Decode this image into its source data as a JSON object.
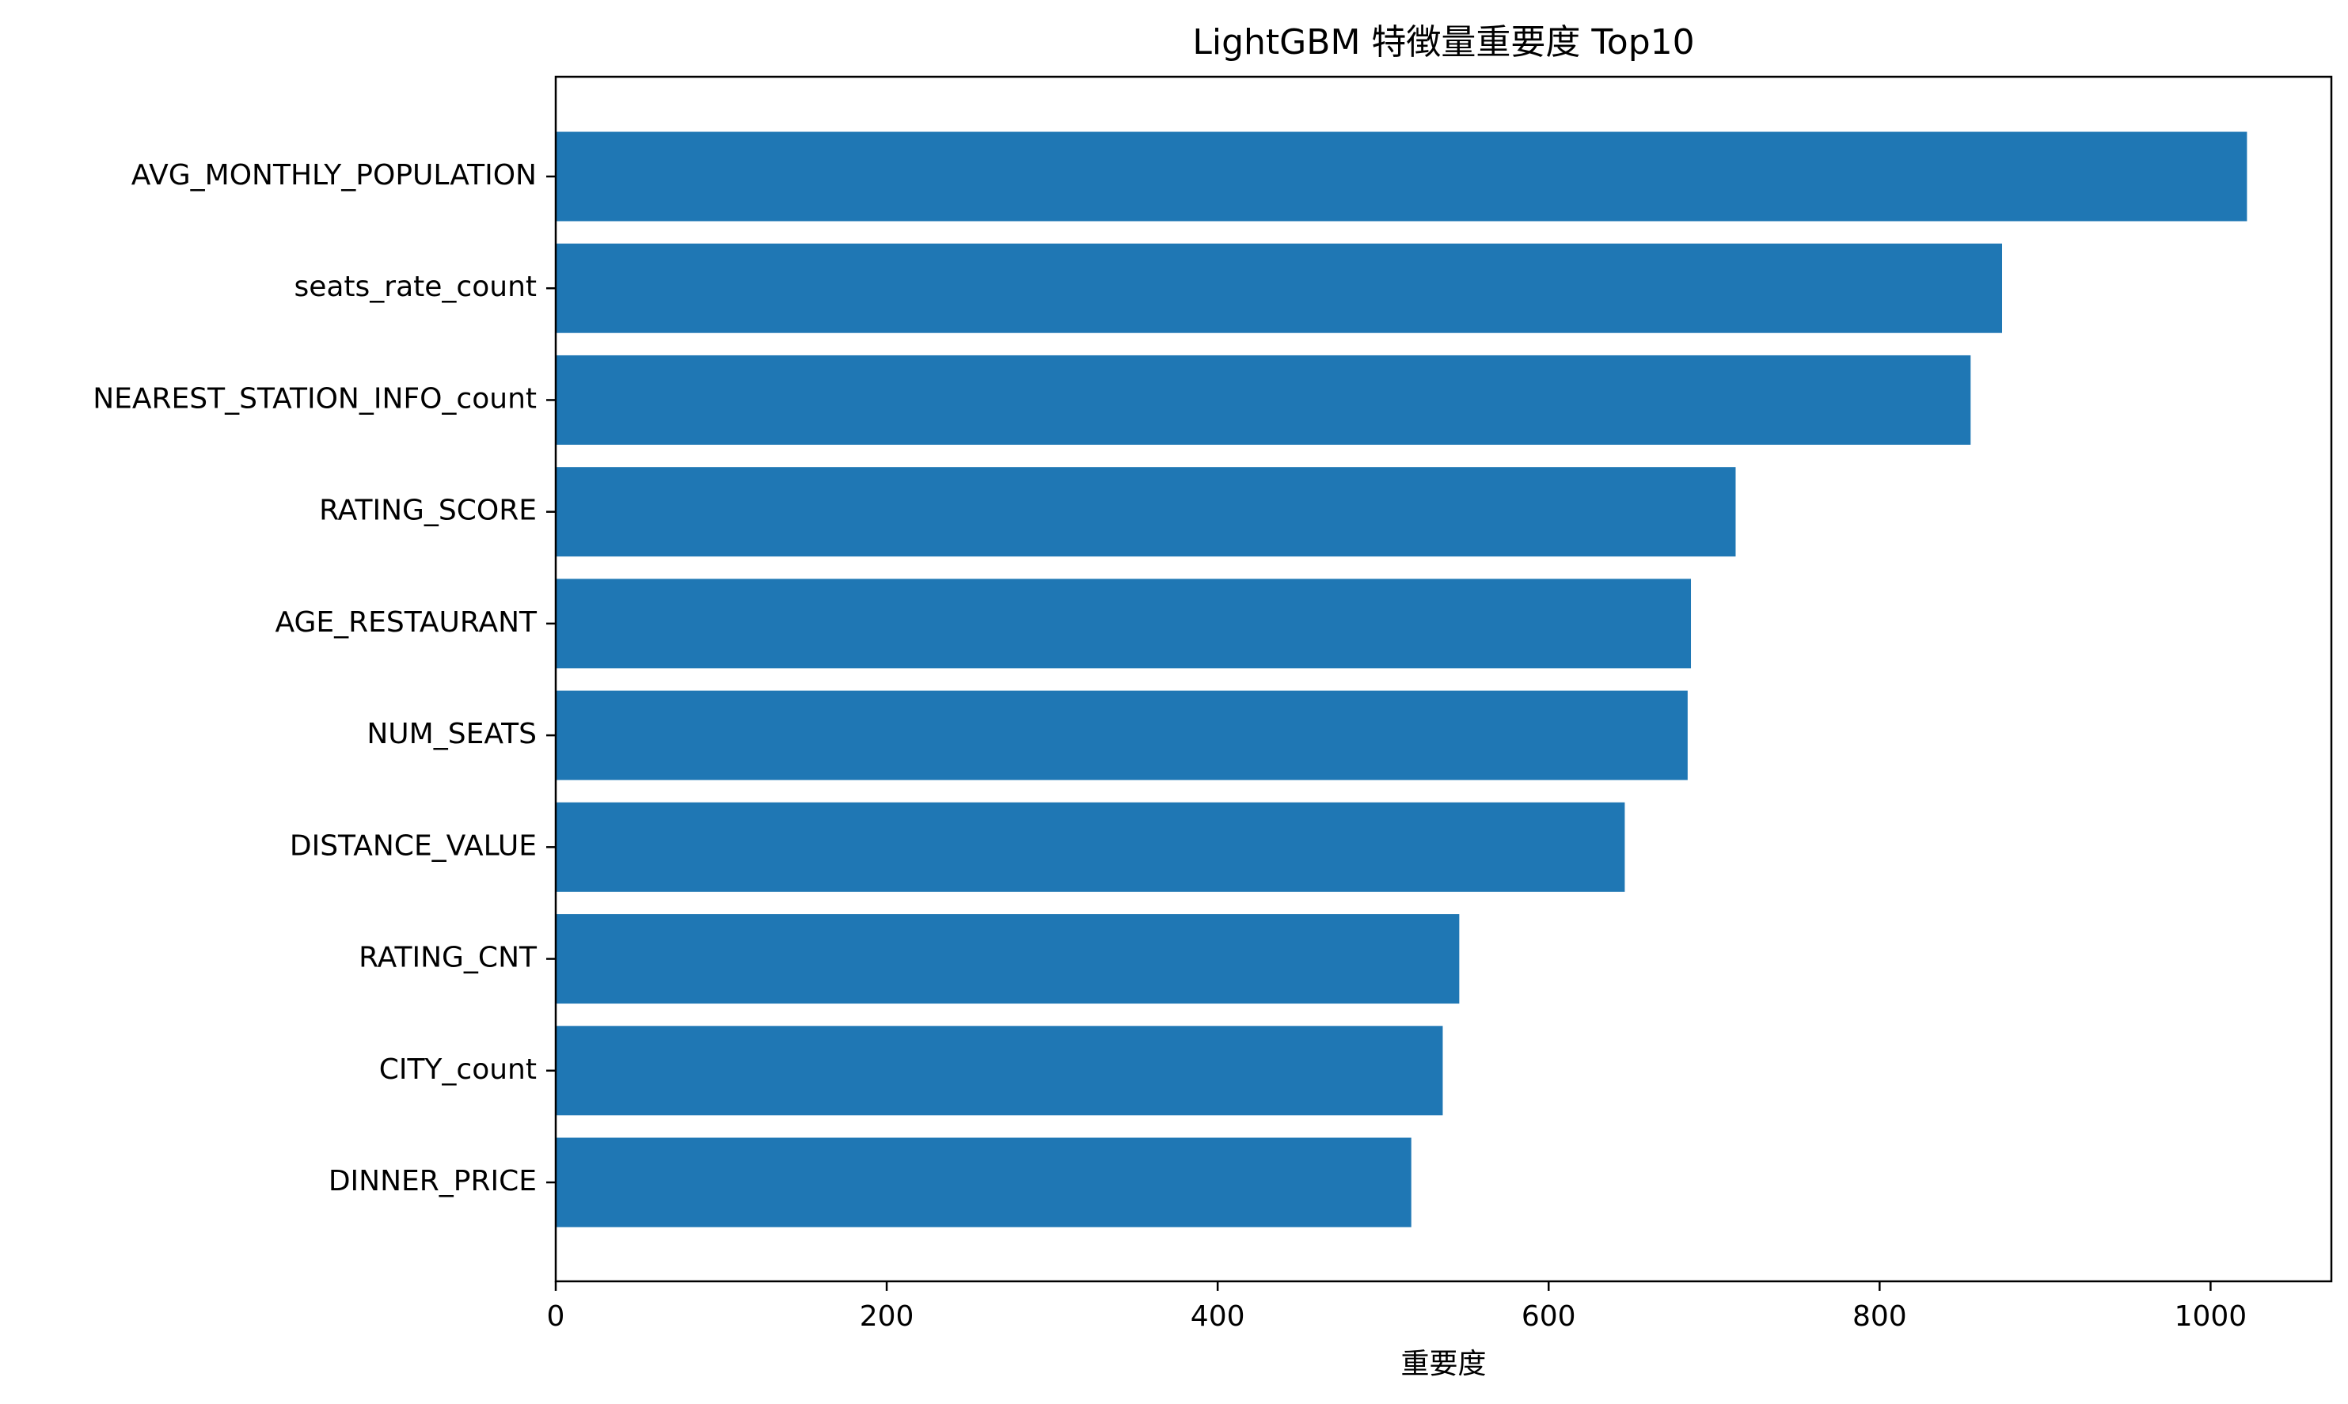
{
  "chart_data": {
    "type": "bar",
    "orientation": "horizontal",
    "title": "LightGBM 特徴量重要度 Top10",
    "xlabel": "重要度",
    "ylabel": "",
    "categories": [
      "AVG_MONTHLY_POPULATION",
      "seats_rate_count",
      "NEAREST_STATION_INFO_count",
      "RATING_SCORE",
      "AGE_RESTAURANT",
      "NUM_SEATS",
      "DISTANCE_VALUE",
      "RATING_CNT",
      "CITY_count",
      "DINNER_PRICE"
    ],
    "values": [
      1022,
      874,
      855,
      713,
      686,
      684,
      646,
      546,
      536,
      517
    ],
    "xlim": [
      0,
      1073
    ],
    "xticks": [
      0,
      200,
      400,
      600,
      800,
      1000
    ],
    "xtick_labels": [
      "0",
      "200",
      "400",
      "600",
      "800",
      "1000"
    ],
    "grid": false,
    "legend": "none",
    "bar_color": "#1f77b4"
  }
}
